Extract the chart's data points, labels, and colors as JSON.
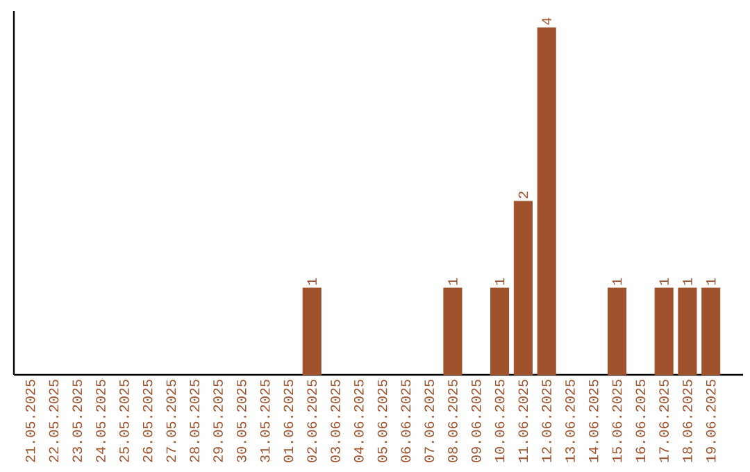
{
  "chart_data": {
    "type": "bar",
    "categories": [
      "21.05.2025",
      "22.05.2025",
      "23.05.2025",
      "24.05.2025",
      "25.05.2025",
      "26.05.2025",
      "27.05.2025",
      "28.05.2025",
      "29.05.2025",
      "30.05.2025",
      "31.05.2025",
      "01.06.2025",
      "02.06.2025",
      "03.06.2025",
      "04.06.2025",
      "05.06.2025",
      "06.06.2025",
      "07.06.2025",
      "08.06.2025",
      "09.06.2025",
      "10.06.2025",
      "11.06.2025",
      "12.06.2025",
      "13.06.2025",
      "14.06.2025",
      "15.06.2025",
      "16.06.2025",
      "17.06.2025",
      "18.06.2025",
      "19.06.2025"
    ],
    "values": [
      null,
      null,
      null,
      null,
      null,
      null,
      null,
      null,
      null,
      null,
      null,
      null,
      1,
      null,
      null,
      null,
      null,
      null,
      1,
      null,
      1,
      2,
      4,
      null,
      null,
      1,
      null,
      1,
      1,
      1
    ],
    "data_labels": true,
    "color": "#a0522d"
  }
}
